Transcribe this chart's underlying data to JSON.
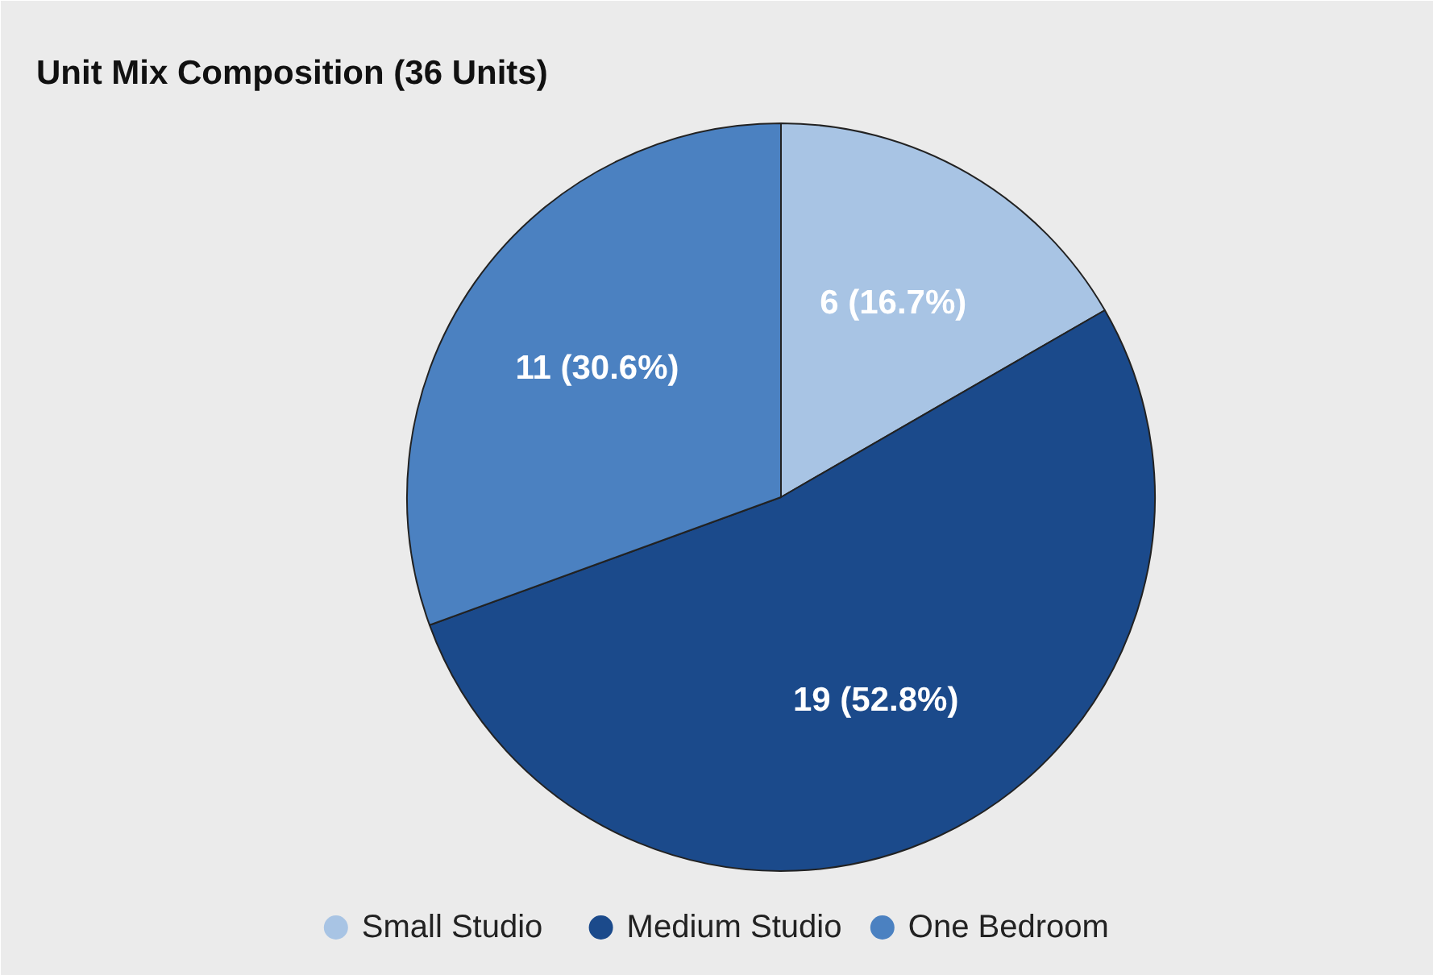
{
  "chart_data": {
    "type": "pie",
    "title": "Unit Mix Composition (36 Units)",
    "categories": [
      "Small Studio",
      "Medium Studio",
      "One Bedroom"
    ],
    "values": [
      6,
      19,
      11
    ],
    "colors": [
      "#a8c4e4",
      "#1b4a8b",
      "#4b81c1"
    ],
    "value_labels": [
      "6 (16.7%)",
      "19 (52.8%)",
      "11 (30.6%)"
    ],
    "legend": "bottom"
  }
}
